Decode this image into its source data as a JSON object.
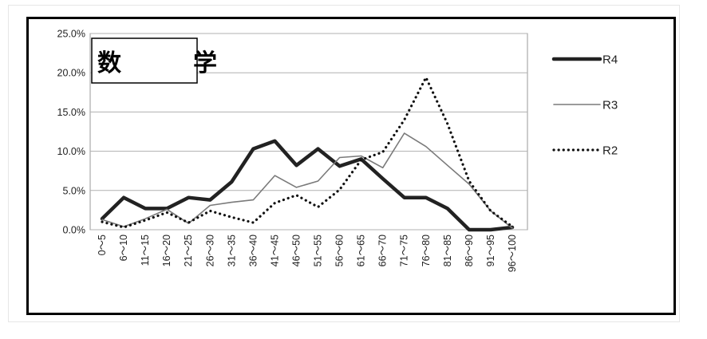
{
  "chart_data": {
    "type": "line",
    "title": "数　学",
    "categories": [
      "0～5",
      "6～10",
      "11～15",
      "16～20",
      "21～25",
      "26～30",
      "31～35",
      "36～40",
      "41～45",
      "46～50",
      "51～55",
      "56～60",
      "61～65",
      "66～70",
      "71～75",
      "76～80",
      "81～85",
      "86～90",
      "91～95",
      "96～100"
    ],
    "y_tick_labels": [
      "0.0%",
      "5.0%",
      "10.0%",
      "15.0%",
      "20.0%",
      "25.0%"
    ],
    "ylim": [
      0,
      25
    ],
    "grid": true,
    "legend_position": "right",
    "series": [
      {
        "name": "R4",
        "style": "thick",
        "color": "#222222",
        "values": [
          1.4,
          4.1,
          2.7,
          2.7,
          4.1,
          3.8,
          6.1,
          10.3,
          11.3,
          8.2,
          10.3,
          8.1,
          9.0,
          6.5,
          4.1,
          4.1,
          2.7,
          0.0,
          0.0,
          0.3
        ]
      },
      {
        "name": "R3",
        "style": "thin",
        "color": "#7a7a7a",
        "values": [
          1.3,
          0.4,
          1.4,
          2.6,
          0.8,
          3.1,
          3.5,
          3.8,
          6.9,
          5.4,
          6.2,
          9.2,
          9.4,
          7.9,
          12.3,
          10.6,
          8.2,
          5.8,
          2.4,
          0.2
        ]
      },
      {
        "name": "R2",
        "style": "dotted",
        "color": "#111111",
        "values": [
          1.0,
          0.3,
          1.2,
          2.2,
          0.9,
          2.4,
          1.6,
          0.9,
          3.4,
          4.4,
          2.9,
          5.1,
          8.9,
          9.9,
          14.0,
          19.4,
          13.5,
          6.2,
          2.4,
          0.4
        ]
      }
    ]
  }
}
